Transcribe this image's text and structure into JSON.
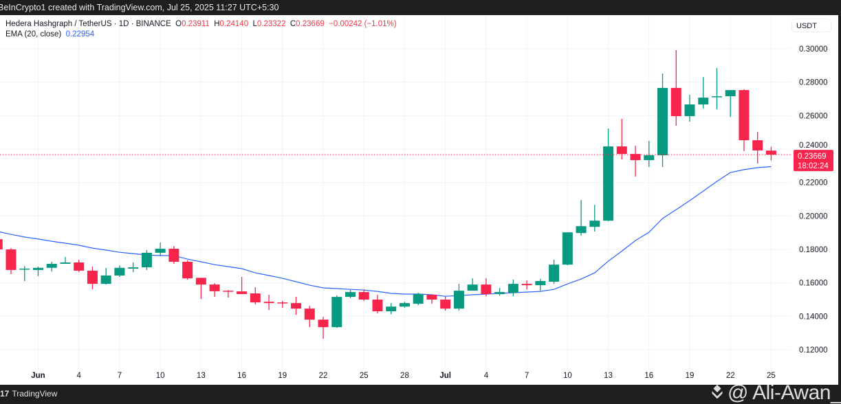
{
  "header": {
    "attribution": "BeInCrypto1 created with TradingView.com, Jul 25, 2025 11:27 UTC+5:30"
  },
  "legend": {
    "symbol": "Hedera Hashgraph / TetherUS · 1D · BINANCE",
    "o_label": "O",
    "o": "0.23911",
    "h_label": "H",
    "h": "0.24140",
    "l_label": "L",
    "l": "0.23322",
    "c_label": "C",
    "c": "0.23669",
    "change": "−0.00242 (−1.01%)",
    "ema_label": "EMA (20, close)",
    "ema_value": "0.22954"
  },
  "currency": "USDT",
  "last_price": {
    "price": "0.23669",
    "countdown": "18:02:24"
  },
  "footer": {
    "brand": "TradingView",
    "watermark": "@ Ali-Awan_"
  },
  "colors": {
    "up": "#089981",
    "down": "#f7254c",
    "ema": "#2962ff",
    "grid": "#f0f3fa"
  },
  "chart_data": {
    "type": "candlestick",
    "title": "Hedera Hashgraph / TetherUS · 1D · BINANCE",
    "ylim": [
      0.11,
      0.312
    ],
    "y_ticks": [
      "0.30000",
      "0.28000",
      "0.26000",
      "0.24000",
      "0.22000",
      "0.20000",
      "0.18000",
      "0.16000",
      "0.14000",
      "0.12000"
    ],
    "x_ticks": [
      {
        "label": "Jun",
        "day": 2,
        "bold": true
      },
      {
        "label": "4",
        "day": 5
      },
      {
        "label": "7",
        "day": 8
      },
      {
        "label": "10",
        "day": 11
      },
      {
        "label": "13",
        "day": 14
      },
      {
        "label": "16",
        "day": 17
      },
      {
        "label": "19",
        "day": 20
      },
      {
        "label": "22",
        "day": 23
      },
      {
        "label": "25",
        "day": 26
      },
      {
        "label": "28",
        "day": 29
      },
      {
        "label": "Jul",
        "day": 32,
        "bold": true
      },
      {
        "label": "4",
        "day": 35
      },
      {
        "label": "7",
        "day": 38
      },
      {
        "label": "10",
        "day": 41
      },
      {
        "label": "13",
        "day": 44
      },
      {
        "label": "16",
        "day": 47
      },
      {
        "label": "19",
        "day": 50
      },
      {
        "label": "22",
        "day": 53
      },
      {
        "label": "25",
        "day": 56
      }
    ],
    "first_day": -1,
    "candles_ohlc": [
      [
        0.1861,
        0.188,
        0.18,
        0.18
      ],
      [
        0.18,
        0.1808,
        0.1652,
        0.1677
      ],
      [
        0.168,
        0.17,
        0.161,
        0.1685
      ],
      [
        0.1677,
        0.1697,
        0.164,
        0.169
      ],
      [
        0.169,
        0.1726,
        0.1668,
        0.1714
      ],
      [
        0.1714,
        0.1755,
        0.1714,
        0.1722
      ],
      [
        0.1722,
        0.1738,
        0.1664,
        0.1673
      ],
      [
        0.1673,
        0.1697,
        0.1562,
        0.1594
      ],
      [
        0.1594,
        0.1689,
        0.159,
        0.1644
      ],
      [
        0.1644,
        0.1705,
        0.1636,
        0.169
      ],
      [
        0.1685,
        0.1722,
        0.1664,
        0.1693
      ],
      [
        0.1693,
        0.1796,
        0.1677,
        0.178
      ],
      [
        0.178,
        0.184,
        0.1759,
        0.1804
      ],
      [
        0.1804,
        0.182,
        0.1714,
        0.1726
      ],
      [
        0.1726,
        0.1734,
        0.1619,
        0.1627
      ],
      [
        0.163,
        0.163,
        0.1504,
        0.159
      ],
      [
        0.159,
        0.1598,
        0.1516,
        0.155
      ],
      [
        0.1553,
        0.1557,
        0.1512,
        0.1549
      ],
      [
        0.1549,
        0.1636,
        0.1533,
        0.1533
      ],
      [
        0.1537,
        0.1574,
        0.1471,
        0.1483
      ],
      [
        0.1487,
        0.1529,
        0.1438,
        0.1479
      ],
      [
        0.1483,
        0.1492,
        0.145,
        0.1479
      ],
      [
        0.1479,
        0.1516,
        0.1409,
        0.1446
      ],
      [
        0.1446,
        0.1462,
        0.1335,
        0.138
      ],
      [
        0.138,
        0.1397,
        0.1266,
        0.1335
      ],
      [
        0.1335,
        0.1524,
        0.1331,
        0.1516
      ],
      [
        0.1516,
        0.1557,
        0.1508,
        0.1545
      ],
      [
        0.1545,
        0.1561,
        0.1492,
        0.15
      ],
      [
        0.15,
        0.1529,
        0.1417,
        0.143
      ],
      [
        0.143,
        0.1479,
        0.1413,
        0.1458
      ],
      [
        0.1458,
        0.1487,
        0.145,
        0.1479
      ],
      [
        0.1475,
        0.1541,
        0.1467,
        0.1533
      ],
      [
        0.1529,
        0.1533,
        0.1475,
        0.15
      ],
      [
        0.15,
        0.152,
        0.1434,
        0.1446
      ],
      [
        0.1446,
        0.1594,
        0.1434,
        0.1553
      ],
      [
        0.1553,
        0.1627,
        0.1553,
        0.159
      ],
      [
        0.159,
        0.1627,
        0.152,
        0.1533
      ],
      [
        0.1533,
        0.157,
        0.1524,
        0.1545
      ],
      [
        0.1541,
        0.1619,
        0.152,
        0.1594
      ],
      [
        0.1594,
        0.1615,
        0.1561,
        0.1586
      ],
      [
        0.1586,
        0.1623,
        0.1553,
        0.1611
      ],
      [
        0.1607,
        0.1738,
        0.1594,
        0.1709
      ],
      [
        0.1709,
        0.1902,
        0.1705,
        0.1902
      ],
      [
        0.1898,
        0.2096,
        0.1882,
        0.1939
      ],
      [
        0.1935,
        0.2067,
        0.1907,
        0.1972
      ],
      [
        0.1972,
        0.2523,
        0.1968,
        0.2416
      ],
      [
        0.2416,
        0.2581,
        0.2338,
        0.2371
      ],
      [
        0.2371,
        0.242,
        0.2236,
        0.2334
      ],
      [
        0.2334,
        0.2449,
        0.2293,
        0.2363
      ],
      [
        0.2363,
        0.2852,
        0.2293,
        0.2766
      ],
      [
        0.2766,
        0.2992,
        0.254,
        0.2597
      ],
      [
        0.2597,
        0.2725,
        0.2564,
        0.2667
      ],
      [
        0.2667,
        0.2831,
        0.2642,
        0.2708
      ],
      [
        0.2712,
        0.2885,
        0.2638,
        0.2716
      ],
      [
        0.2716,
        0.2753,
        0.2593,
        0.2753
      ],
      [
        0.2753,
        0.2757,
        0.2388,
        0.2453
      ],
      [
        0.2453,
        0.2503,
        0.2314,
        0.2392
      ],
      [
        0.23911,
        0.2414,
        0.23322,
        0.23669
      ]
    ],
    "ema20": [
      0.1907,
      0.189,
      0.1874,
      0.1862,
      0.1849,
      0.1837,
      0.1825,
      0.1808,
      0.1796,
      0.1783,
      0.1775,
      0.1767,
      0.1763,
      0.1763,
      0.1742,
      0.1726,
      0.1709,
      0.1697,
      0.1685,
      0.166,
      0.1644,
      0.1627,
      0.1607,
      0.1586,
      0.157,
      0.1566,
      0.1561,
      0.1557,
      0.1549,
      0.1537,
      0.1533,
      0.1533,
      0.1529,
      0.152,
      0.1524,
      0.1529,
      0.1533,
      0.1537,
      0.1541,
      0.1545,
      0.1549,
      0.1561,
      0.1594,
      0.1623,
      0.166,
      0.173,
      0.179,
      0.1853,
      0.1903,
      0.1985,
      0.2038,
      0.2092,
      0.2149,
      0.2207,
      0.226,
      0.2277,
      0.2289,
      0.22954
    ],
    "current_price": 0.23669
  }
}
